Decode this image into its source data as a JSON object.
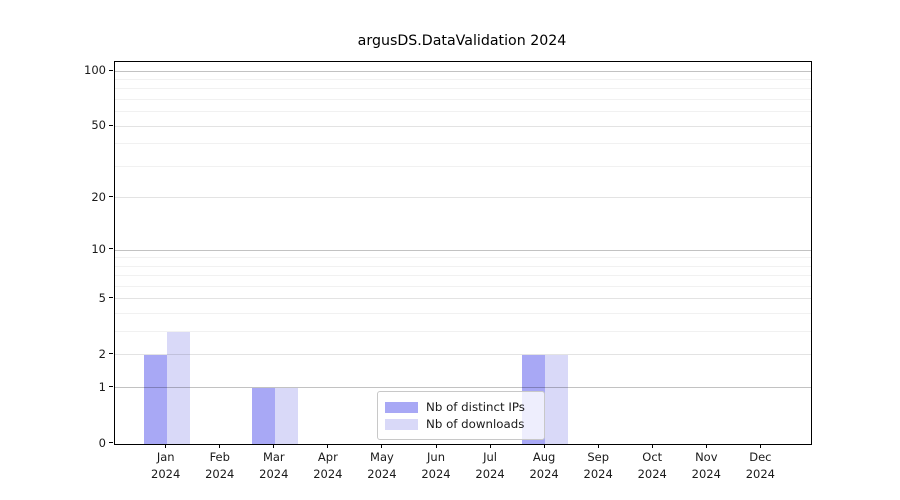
{
  "chart_data": {
    "type": "bar",
    "title": "argusDS.DataValidation 2024",
    "categories": [
      "Jan",
      "Feb",
      "Mar",
      "Apr",
      "May",
      "Jun",
      "Jul",
      "Aug",
      "Sep",
      "Oct",
      "Nov",
      "Dec"
    ],
    "category_year": "2024",
    "series": [
      {
        "name": "Nb of distinct IPs",
        "color": "#a8a8f5",
        "values": [
          2,
          0,
          1,
          0,
          0,
          0,
          0,
          2,
          0,
          0,
          0,
          0
        ]
      },
      {
        "name": "Nb of downloads",
        "color": "#d9d9f8",
        "values": [
          3,
          0,
          1,
          0,
          0,
          0,
          0,
          2,
          0,
          0,
          0,
          0
        ]
      }
    ],
    "yscale": "log1p",
    "ylim": [
      0,
      112
    ],
    "yticks": [
      0,
      1,
      2,
      5,
      10,
      20,
      50,
      100
    ],
    "decade_gridlines": [
      1,
      10,
      100
    ],
    "minor_gridlines": [
      3,
      4,
      6,
      7,
      8,
      9,
      30,
      40,
      60,
      70,
      80,
      90
    ],
    "grid": "horizontal",
    "legend_position": "lower center",
    "xlabel": "",
    "ylabel": ""
  },
  "colors": {
    "spine": "#000000",
    "bar_distinct_ips": "#a8a8f5",
    "bar_downloads": "#d9d9f8",
    "grid_decade": "#c6c6c6",
    "grid_major": "#e4e4e4",
    "grid_minor": "#f1f1f1",
    "text": "#1a1a1a"
  }
}
